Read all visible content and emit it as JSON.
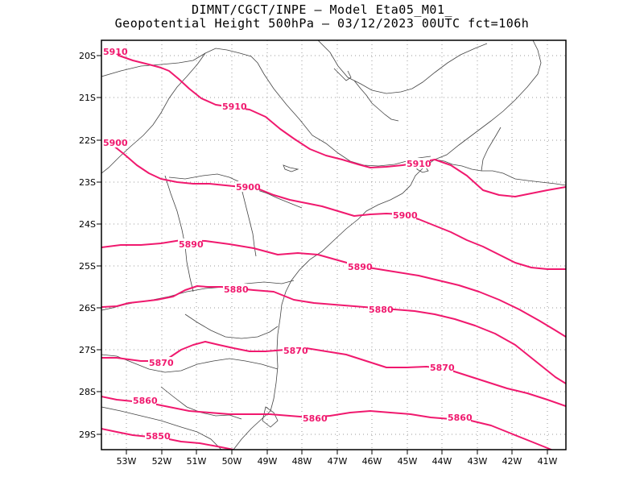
{
  "title": {
    "line1": "DIMNT/CGCT/INPE –  Model Eta05_M01_",
    "line2": "Geopotential Height 500hPa –  03/12/2023 00UTC fct=106h"
  },
  "colors": {
    "contour": "#f0196e",
    "coast": "#444444",
    "grid": "#9a9a9a",
    "frame": "#000000"
  },
  "axes": {
    "lat_labels": [
      "20S",
      "21S",
      "22S",
      "23S",
      "24S",
      "25S",
      "26S",
      "27S",
      "28S",
      "29S"
    ],
    "lon_labels": [
      "53W",
      "52W",
      "51W",
      "50W",
      "49W",
      "48W",
      "47W",
      "46W",
      "45W",
      "44W",
      "43W",
      "42W",
      "41W"
    ]
  },
  "contours": [
    {
      "value": "5910",
      "labels": [
        {
          "text": "5910"
        },
        {
          "text": "5910"
        },
        {
          "text": "5910"
        }
      ]
    },
    {
      "value": "5900",
      "labels": [
        {
          "text": "5900"
        },
        {
          "text": "5900"
        },
        {
          "text": "5900"
        }
      ]
    },
    {
      "value": "5890",
      "labels": [
        {
          "text": "5890"
        },
        {
          "text": "5890"
        }
      ]
    },
    {
      "value": "5880",
      "labels": [
        {
          "text": "5880"
        },
        {
          "text": "5880"
        }
      ]
    },
    {
      "value": "5870",
      "labels": [
        {
          "text": "5870"
        },
        {
          "text": "5870"
        },
        {
          "text": "5870"
        }
      ]
    },
    {
      "value": "5860",
      "labels": [
        {
          "text": "5860"
        },
        {
          "text": "5860"
        },
        {
          "text": "5860"
        }
      ]
    },
    {
      "value": "5850",
      "labels": [
        {
          "text": "5850"
        }
      ]
    }
  ]
}
